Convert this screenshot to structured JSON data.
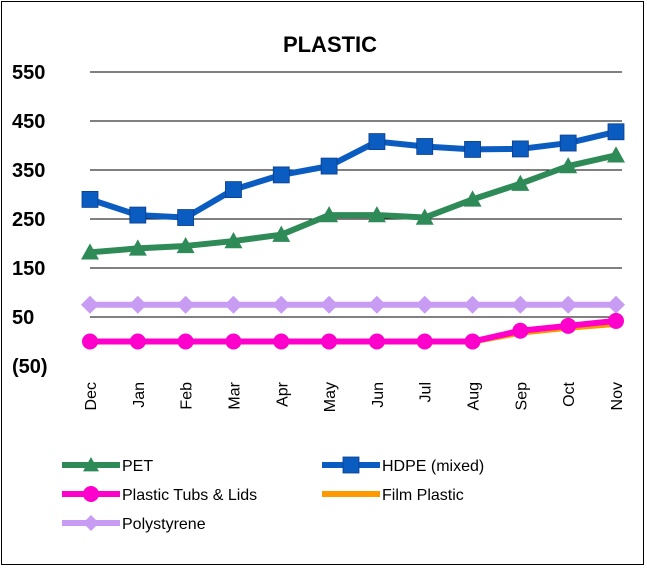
{
  "chart_data": {
    "type": "line",
    "title": "PLASTIC",
    "xlabel": "",
    "ylabel": "",
    "ylim": [
      -50,
      550
    ],
    "yticks": [
      550,
      450,
      350,
      250,
      150,
      50,
      -50
    ],
    "ytick_labels": [
      "550",
      "450",
      "350",
      "250",
      "150",
      "50",
      "(50)"
    ],
    "categories": [
      "Dec",
      "Jan",
      "Feb",
      "Mar",
      "Apr",
      "May",
      "Jun",
      "Jul",
      "Aug",
      "Sep",
      "Oct",
      "Nov"
    ],
    "grid": true,
    "legend_position": "bottom",
    "series": [
      {
        "name": "PET",
        "color": "#2E8B57",
        "marker": "triangle",
        "values": [
          182,
          190,
          195,
          205,
          218,
          258,
          258,
          253,
          290,
          322,
          358,
          380
        ]
      },
      {
        "name": "HDPE (mixed)",
        "color": "#0B5CC0",
        "marker": "square",
        "values": [
          290,
          258,
          253,
          310,
          340,
          358,
          408,
          398,
          392,
          393,
          405,
          428
        ]
      },
      {
        "name": "Plastic Tubs & Lids",
        "color": "#FF00CC",
        "marker": "circle",
        "values": [
          0,
          0,
          0,
          0,
          0,
          0,
          0,
          0,
          0,
          22,
          32,
          42
        ]
      },
      {
        "name": "Film Plastic",
        "color": "#FF9900",
        "marker": "none",
        "values": [
          0,
          0,
          0,
          0,
          0,
          0,
          0,
          0,
          0,
          18,
          28,
          36
        ]
      },
      {
        "name": "Polystyrene",
        "color": "#C89CF2",
        "marker": "diamond",
        "values": [
          75,
          75,
          75,
          75,
          75,
          75,
          75,
          75,
          75,
          75,
          75,
          75
        ]
      }
    ]
  }
}
